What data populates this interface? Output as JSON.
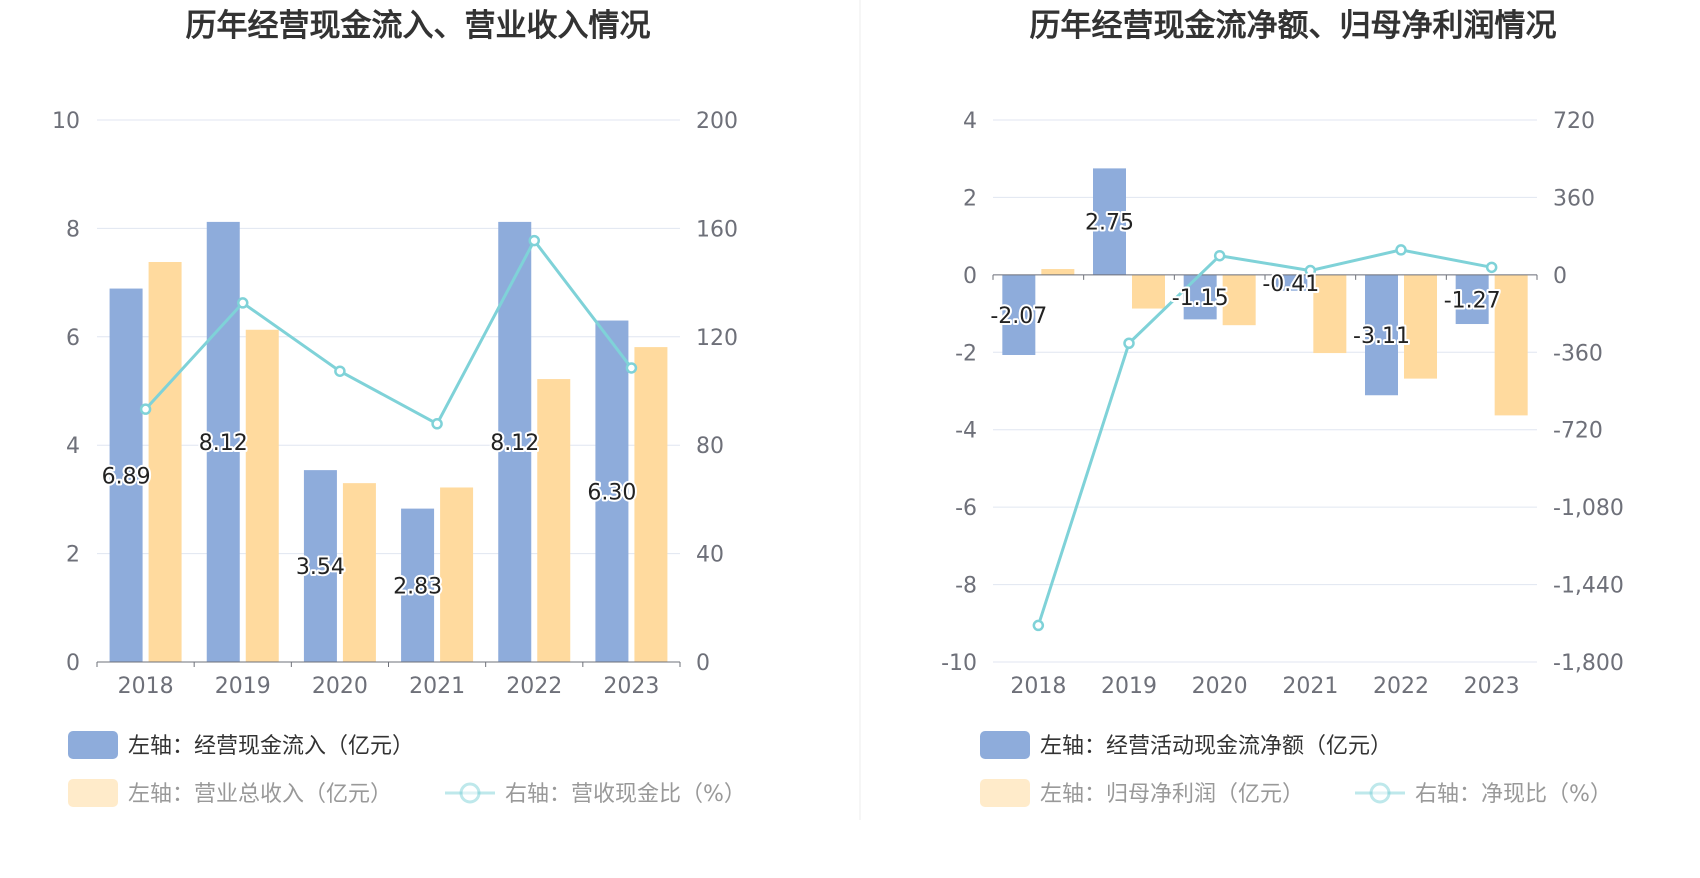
{
  "chart_data": [
    {
      "type": "bar",
      "title": "历年经营现金流入、营业收入情况",
      "categories": [
        "2018",
        "2019",
        "2020",
        "2021",
        "2022",
        "2023"
      ],
      "ylim_left": [
        0,
        10
      ],
      "yticks_left": [
        "0",
        "2",
        "4",
        "6",
        "8",
        "10"
      ],
      "ylim_right": [
        0,
        200
      ],
      "yticks_right": [
        "0",
        "40",
        "80",
        "120",
        "160",
        "200"
      ],
      "grid": true,
      "legend_position": "bottom-left",
      "series": [
        {
          "name": "左轴：经营现金流入（亿元）",
          "kind": "bar",
          "axis": "left",
          "color": "#8eacdb",
          "values": [
            6.89,
            8.12,
            3.54,
            2.83,
            8.12,
            6.3
          ],
          "labels": [
            "6.89",
            "8.12",
            "3.54",
            "2.83",
            "8.12",
            "6.30"
          ]
        },
        {
          "name": "左轴：营业总收入（亿元）",
          "kind": "bar",
          "axis": "left",
          "color": "#ffda9e",
          "values": [
            7.38,
            6.13,
            3.3,
            3.22,
            5.22,
            5.81
          ]
        },
        {
          "name": "右轴：营收现金比（%）",
          "kind": "line",
          "axis": "right",
          "color": "#7fd2d8",
          "values": [
            93.3,
            132.5,
            107.3,
            87.9,
            155.5,
            108.5
          ]
        }
      ]
    },
    {
      "type": "bar",
      "title": "历年经营现金流净额、归母净利润情况",
      "categories": [
        "2018",
        "2019",
        "2020",
        "2021",
        "2022",
        "2023"
      ],
      "ylim_left": [
        -10,
        4
      ],
      "yticks_left": [
        "-10",
        "-8",
        "-6",
        "-4",
        "-2",
        "0",
        "2",
        "4"
      ],
      "ylim_right": [
        -1800,
        720
      ],
      "yticks_right": [
        "-1,800",
        "-1,440",
        "-1,080",
        "-720",
        "-360",
        "0",
        "360",
        "720"
      ],
      "grid": true,
      "legend_position": "bottom-left",
      "series": [
        {
          "name": "左轴：经营活动现金流净额（亿元）",
          "kind": "bar",
          "axis": "left",
          "color": "#8eacdb",
          "values": [
            -2.07,
            2.75,
            -1.15,
            -0.41,
            -3.11,
            -1.27
          ],
          "labels": [
            "-2.07",
            "2.75",
            "-1.15",
            "-0.41",
            "-3.11",
            "-1.27"
          ]
        },
        {
          "name": "左轴：归母净利润（亿元）",
          "kind": "bar",
          "axis": "left",
          "color": "#ffda9e",
          "values": [
            0.15,
            -0.87,
            -1.3,
            -2.02,
            -2.68,
            -3.63
          ]
        },
        {
          "name": "右轴：净现比（%）",
          "kind": "line",
          "axis": "right",
          "color": "#7fd2d8",
          "values": [
            -1630,
            -318,
            89,
            20,
            116,
            35
          ]
        }
      ]
    }
  ]
}
